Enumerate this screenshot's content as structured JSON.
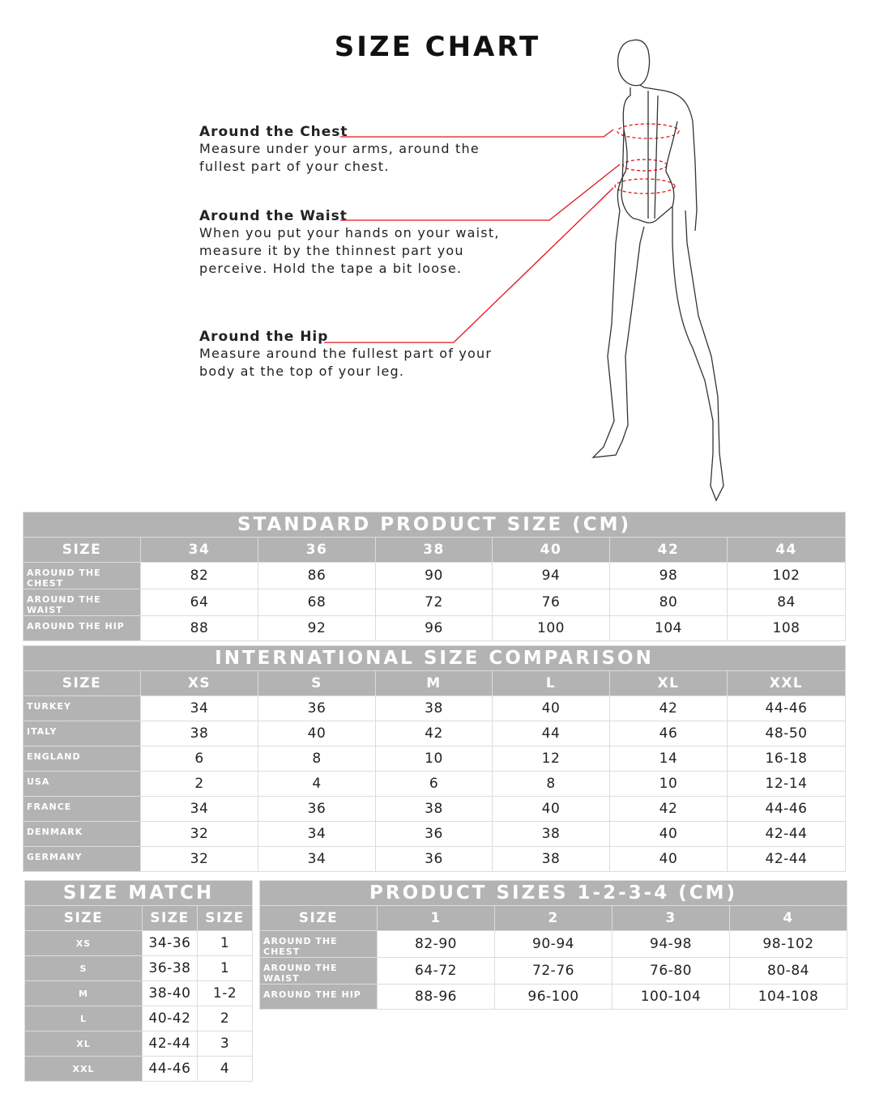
{
  "title": "SIZE CHART",
  "measurements": [
    {
      "heading": "Around the Chest",
      "description": "Measure under your arms, around the fullest part of your chest."
    },
    {
      "heading": "Around the Waist",
      "description": "When you put your hands on your waist, measure it by the thinnest part you perceive. Hold the tape a bit loose."
    },
    {
      "heading": "Around the Hip",
      "description": "Measure around the fullest part of your body at the top of your leg."
    }
  ],
  "colors": {
    "header_gray": "#b3b3b3",
    "guide_line": "#e3141b"
  },
  "standard": {
    "title": "STANDARD PRODUCT SIZE (CM)",
    "headers": [
      "SIZE",
      "34",
      "36",
      "38",
      "40",
      "42",
      "44"
    ],
    "rows": [
      [
        "AROUND THE CHEST",
        "82",
        "86",
        "90",
        "94",
        "98",
        "102"
      ],
      [
        "AROUND THE WAIST",
        "64",
        "68",
        "72",
        "76",
        "80",
        "84"
      ],
      [
        "AROUND THE HIP",
        "88",
        "92",
        "96",
        "100",
        "104",
        "108"
      ]
    ]
  },
  "international": {
    "title": "INTERNATIONAL SIZE COMPARISON",
    "headers": [
      "SIZE",
      "XS",
      "S",
      "M",
      "L",
      "XL",
      "XXL"
    ],
    "rows": [
      [
        "TURKEY",
        "34",
        "36",
        "38",
        "40",
        "42",
        "44-46"
      ],
      [
        "ITALY",
        "38",
        "40",
        "42",
        "44",
        "46",
        "48-50"
      ],
      [
        "ENGLAND",
        "6",
        "8",
        "10",
        "12",
        "14",
        "16-18"
      ],
      [
        "USA",
        "2",
        "4",
        "6",
        "8",
        "10",
        "12-14"
      ],
      [
        "FRANCE",
        "34",
        "36",
        "38",
        "40",
        "42",
        "44-46"
      ],
      [
        "DENMARK",
        "32",
        "34",
        "36",
        "38",
        "40",
        "42-44"
      ],
      [
        "GERMANY",
        "32",
        "34",
        "36",
        "38",
        "40",
        "42-44"
      ]
    ]
  },
  "size_match": {
    "title": "SIZE MATCH",
    "headers": [
      "SIZE",
      "SIZE",
      "SIZE"
    ],
    "rows": [
      [
        "XS",
        "34-36",
        "1"
      ],
      [
        "S",
        "36-38",
        "1"
      ],
      [
        "M",
        "38-40",
        "1-2"
      ],
      [
        "L",
        "40-42",
        "2"
      ],
      [
        "XL",
        "42-44",
        "3"
      ],
      [
        "XXL",
        "44-46",
        "4"
      ]
    ]
  },
  "product_sizes": {
    "title": "PRODUCT SIZES 1-2-3-4 (CM)",
    "headers": [
      "SIZE",
      "1",
      "2",
      "3",
      "4"
    ],
    "rows": [
      [
        "AROUND THE CHEST",
        "82-90",
        "90-94",
        "94-98",
        "98-102"
      ],
      [
        "AROUND THE WAIST",
        "64-72",
        "72-76",
        "76-80",
        "80-84"
      ],
      [
        "AROUND THE HIP",
        "88-96",
        "96-100",
        "100-104",
        "104-108"
      ]
    ]
  }
}
